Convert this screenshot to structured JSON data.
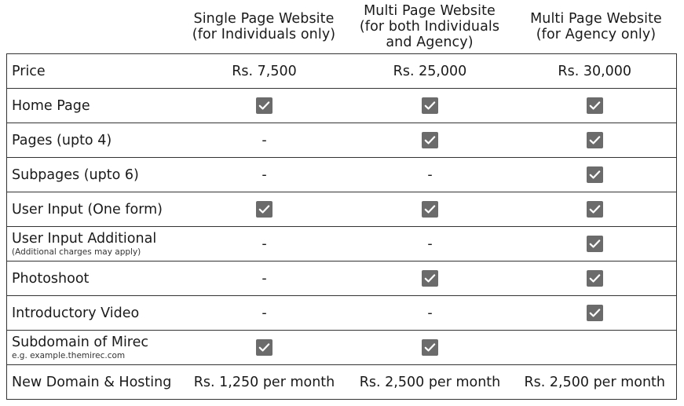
{
  "columns": [
    "Single Page Website\n(for Individuals only)",
    "Multi Page Website\n(for both Individuals\nand Agency)",
    "Multi Page Website\n(for Agency only)"
  ],
  "rows": [
    {
      "feature": "Price",
      "note": "",
      "cells": [
        {
          "type": "text",
          "text": "Rs. 7,500"
        },
        {
          "type": "text",
          "text": "Rs. 25,000"
        },
        {
          "type": "text",
          "text": "Rs. 30,000"
        }
      ]
    },
    {
      "feature": "Home Page",
      "note": "",
      "cells": [
        {
          "type": "check"
        },
        {
          "type": "check"
        },
        {
          "type": "check"
        }
      ]
    },
    {
      "feature": "Pages (upto 4)",
      "note": "",
      "cells": [
        {
          "type": "text",
          "text": "-"
        },
        {
          "type": "check"
        },
        {
          "type": "check"
        }
      ]
    },
    {
      "feature": "Subpages (upto 6)",
      "note": "",
      "cells": [
        {
          "type": "text",
          "text": "-"
        },
        {
          "type": "text",
          "text": "-"
        },
        {
          "type": "check"
        }
      ]
    },
    {
      "feature": "User Input (One form)",
      "note": "",
      "cells": [
        {
          "type": "check"
        },
        {
          "type": "check"
        },
        {
          "type": "check"
        }
      ]
    },
    {
      "feature": "User Input Additional",
      "note": "(Additional charges may apply)",
      "cells": [
        {
          "type": "text",
          "text": "-"
        },
        {
          "type": "text",
          "text": "-"
        },
        {
          "type": "check"
        }
      ]
    },
    {
      "feature": "Photoshoot",
      "note": "",
      "cells": [
        {
          "type": "text",
          "text": "-"
        },
        {
          "type": "check"
        },
        {
          "type": "check"
        }
      ]
    },
    {
      "feature": "Introductory Video",
      "note": "",
      "cells": [
        {
          "type": "text",
          "text": "-"
        },
        {
          "type": "text",
          "text": "-"
        },
        {
          "type": "check"
        }
      ]
    },
    {
      "feature": "Subdomain of Mirec",
      "note": "e.g. example.themirec.com",
      "cells": [
        {
          "type": "check"
        },
        {
          "type": "check"
        },
        {
          "type": "empty"
        }
      ]
    },
    {
      "feature": "New Domain & Hosting",
      "note": "",
      "cells": [
        {
          "type": "text",
          "text": "Rs. 1,250 per month"
        },
        {
          "type": "text",
          "text": "Rs. 2,500 per month"
        },
        {
          "type": "text",
          "text": "Rs. 2,500 per month"
        }
      ]
    }
  ],
  "icons": {
    "check": "checkbox-checked-icon"
  },
  "colors": {
    "check_bg": "#6b6b6b",
    "check_mark": "#ffffff",
    "border": "#333333"
  }
}
